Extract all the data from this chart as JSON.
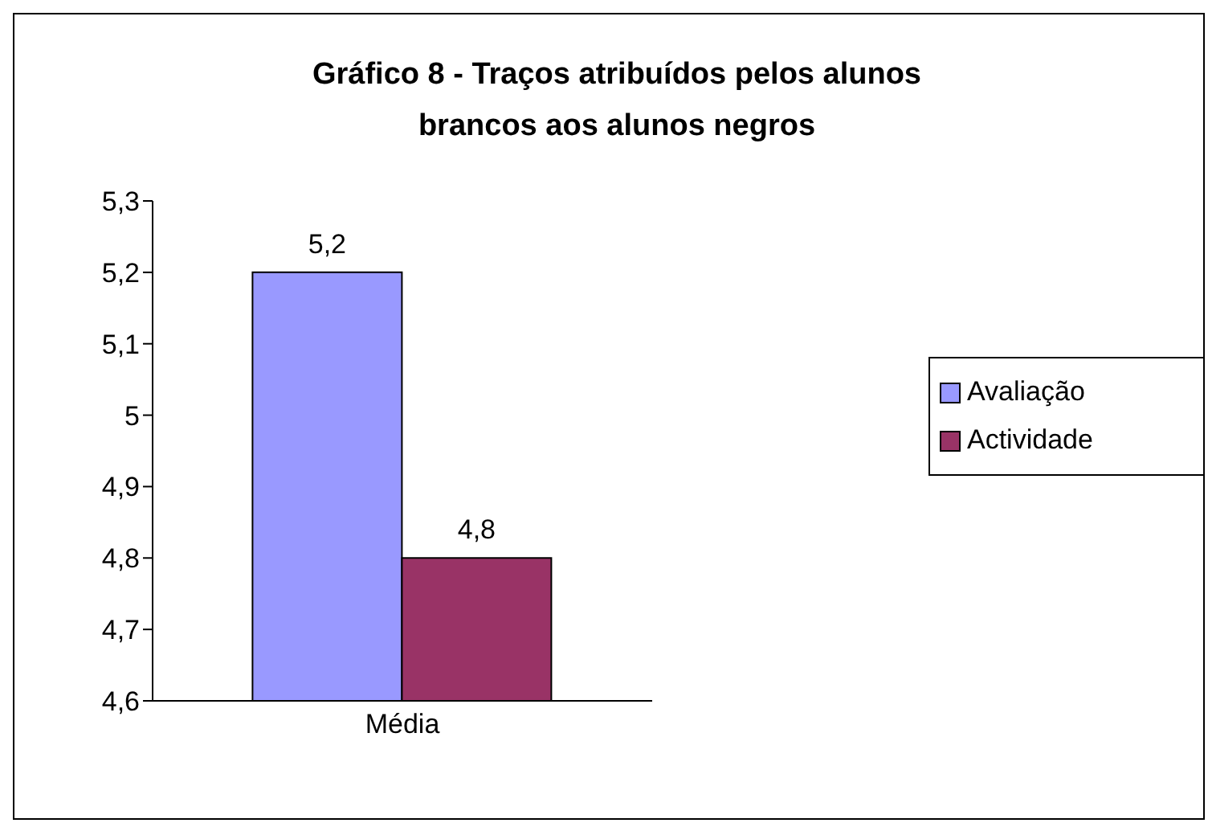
{
  "chart_data": {
    "type": "bar",
    "title": "Gráfico 8 - Traços atribuídos pelos alunos brancos aos alunos negros",
    "categories": [
      "Média"
    ],
    "series": [
      {
        "name": "Avaliação",
        "color": "#9999ff",
        "values": [
          5.2
        ],
        "value_labels": [
          "5,2"
        ]
      },
      {
        "name": "Actividade",
        "color": "#993366",
        "values": [
          4.8
        ],
        "value_labels": [
          "4,8"
        ]
      }
    ],
    "ylim": [
      4.6,
      5.3
    ],
    "yticks": [
      {
        "value": 4.6,
        "label": "4,6"
      },
      {
        "value": 4.7,
        "label": "4,7"
      },
      {
        "value": 4.8,
        "label": "4,8"
      },
      {
        "value": 4.9,
        "label": "4,9"
      },
      5,
      {
        "value": 5.1,
        "label": "5,1"
      },
      {
        "value": 5.2,
        "label": "5,2"
      },
      {
        "value": 5.3,
        "label": "5,3"
      }
    ],
    "grid": false,
    "legend": "right"
  }
}
